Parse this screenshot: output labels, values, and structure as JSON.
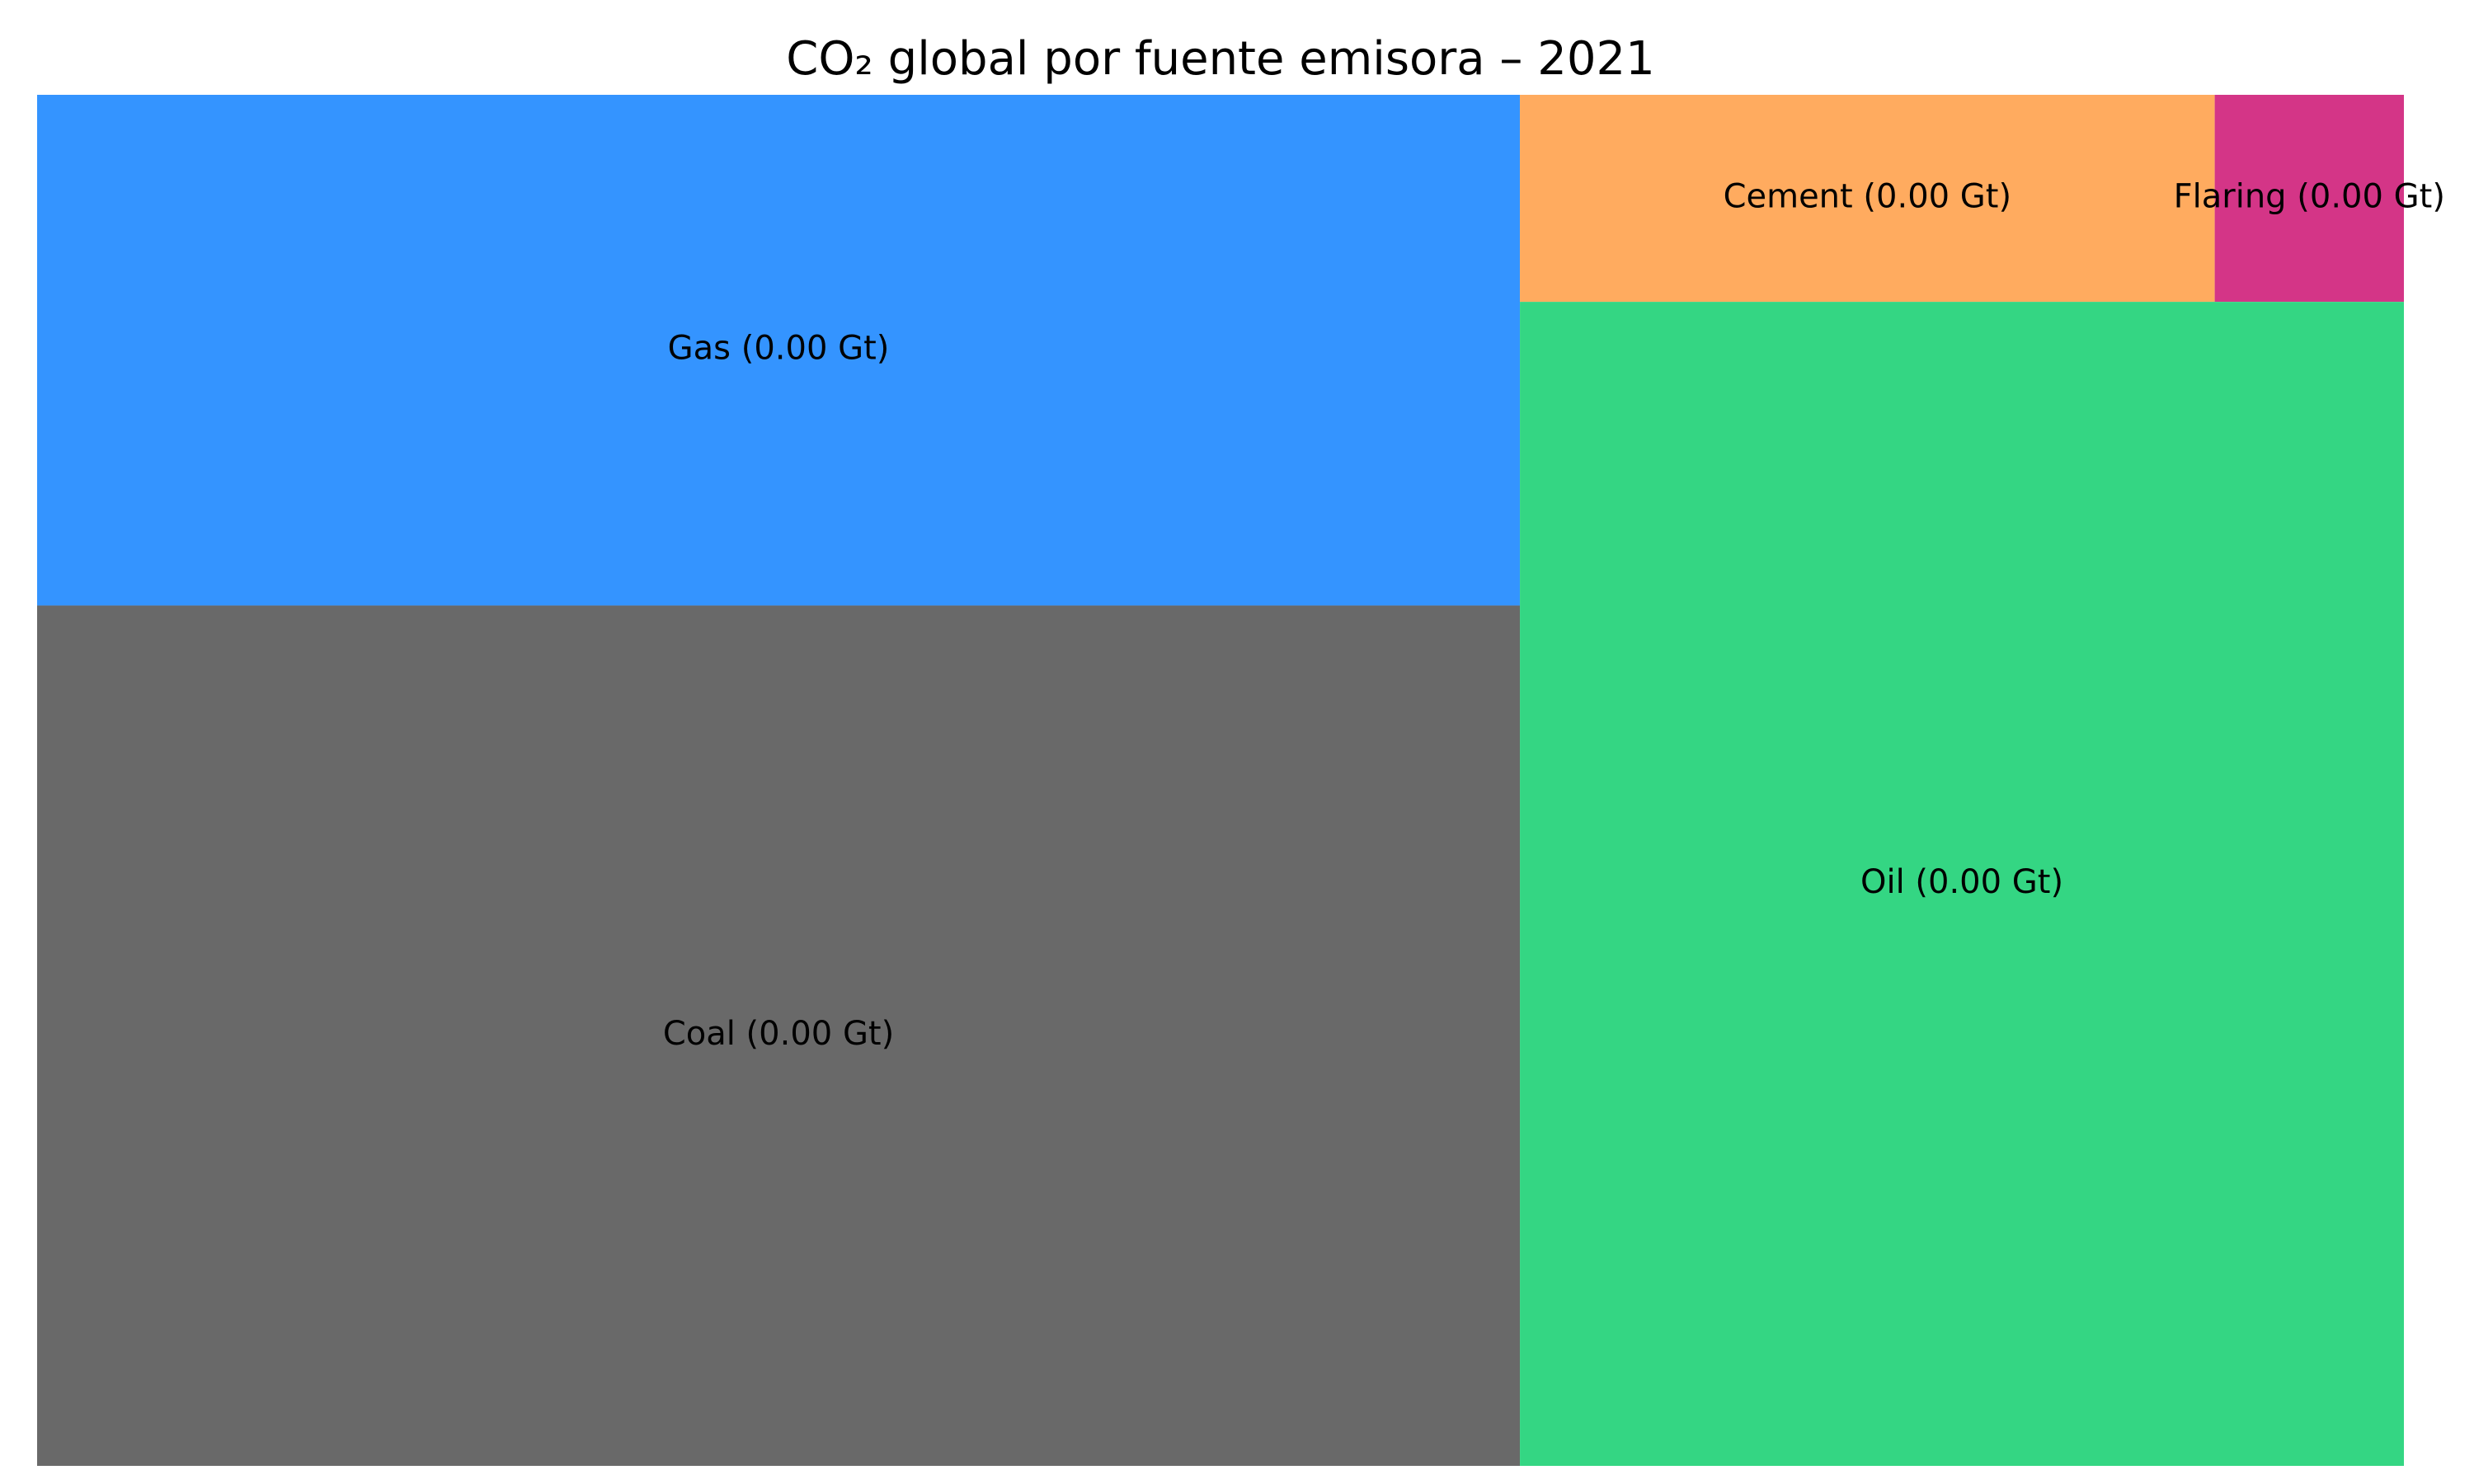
{
  "chart_data": {
    "type": "treemap",
    "title": "CO₂ global por fuente emisora – 2021",
    "items": [
      {
        "name": "Coal",
        "label": "Coal (0.00 Gt)",
        "relative_area": 0.375,
        "color": "#696969"
      },
      {
        "name": "Oil",
        "label": "Oil (0.00 Gt)",
        "relative_area": 0.318,
        "color": "#34d683"
      },
      {
        "name": "Gas",
        "label": "Gas (0.00 Gt)",
        "relative_area": 0.223,
        "color": "#3494ff"
      },
      {
        "name": "Cement",
        "label": "Cement (0.00 Gt)",
        "relative_area": 0.057,
        "color": "#ffab5f"
      },
      {
        "name": "Flaring",
        "label": "Flaring (0.00 Gt)",
        "relative_area": 0.016,
        "color": "#d43587"
      }
    ]
  }
}
